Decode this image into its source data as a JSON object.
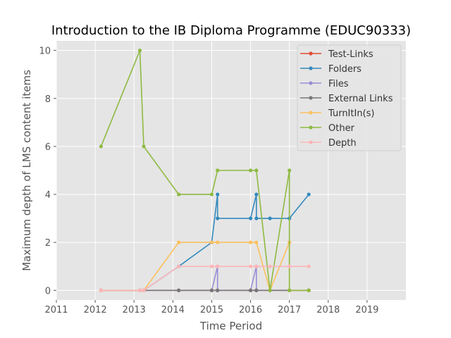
{
  "chart_data": {
    "type": "line",
    "title": "Introduction to the IB Diploma Programme (EDUC90333)",
    "xlabel": "Time Period",
    "ylabel": "Maximum depth of LMS content items",
    "xlim": [
      2011,
      2020
    ],
    "ylim": [
      -0.4,
      10.4
    ],
    "xticks": [
      2011,
      2012,
      2013,
      2014,
      2015,
      2016,
      2017,
      2018,
      2019
    ],
    "yticks": [
      0,
      2,
      4,
      6,
      8,
      10
    ],
    "grid": true,
    "legend_position": "top-right",
    "series": [
      {
        "name": "Test-Links",
        "color": "#E24A33",
        "points": [
          [
            2012.15,
            0
          ],
          [
            2013.15,
            0
          ],
          [
            2013.25,
            0
          ],
          [
            2014.15,
            0
          ],
          [
            2015.0,
            0
          ],
          [
            2015.15,
            0
          ],
          [
            2016.0,
            0
          ],
          [
            2016.15,
            0
          ],
          [
            2016.5,
            0
          ],
          [
            2017.0,
            0
          ],
          [
            2017.5,
            0
          ]
        ]
      },
      {
        "name": "Folders",
        "color": "#348ABD",
        "points": [
          [
            2012.15,
            0
          ],
          [
            2013.15,
            0
          ],
          [
            2013.25,
            0
          ],
          [
            2014.15,
            1
          ],
          [
            2015.0,
            2
          ],
          [
            2015.15,
            4
          ],
          [
            2015.15,
            3
          ],
          [
            2016.0,
            3
          ],
          [
            2016.15,
            4
          ],
          [
            2016.15,
            3
          ],
          [
            2016.5,
            3
          ],
          [
            2017.0,
            3
          ],
          [
            2017.5,
            4
          ]
        ]
      },
      {
        "name": "Files",
        "color": "#988ED5",
        "points": [
          [
            2012.15,
            0
          ],
          [
            2013.15,
            0
          ],
          [
            2013.25,
            0
          ],
          [
            2014.15,
            0
          ],
          [
            2015.0,
            0
          ],
          [
            2015.15,
            1
          ],
          [
            2015.15,
            0
          ],
          [
            2016.0,
            0
          ],
          [
            2016.15,
            1
          ],
          [
            2016.15,
            0
          ],
          [
            2016.5,
            0
          ],
          [
            2017.0,
            0
          ],
          [
            2017.5,
            0
          ]
        ]
      },
      {
        "name": "External Links",
        "color": "#777777",
        "points": [
          [
            2012.15,
            0
          ],
          [
            2013.15,
            0
          ],
          [
            2013.25,
            0
          ],
          [
            2014.15,
            0
          ],
          [
            2015.0,
            0
          ],
          [
            2015.15,
            0
          ],
          [
            2016.0,
            0
          ],
          [
            2016.15,
            0
          ],
          [
            2016.5,
            0
          ],
          [
            2017.0,
            0
          ],
          [
            2017.5,
            0
          ]
        ]
      },
      {
        "name": "TurnItIn(s)",
        "color": "#FBC15E",
        "points": [
          [
            2012.15,
            0
          ],
          [
            2013.15,
            0
          ],
          [
            2013.25,
            0
          ],
          [
            2014.15,
            2
          ],
          [
            2015.0,
            2
          ],
          [
            2015.15,
            2
          ],
          [
            2016.0,
            2
          ],
          [
            2016.15,
            2
          ],
          [
            2016.5,
            0
          ],
          [
            2017.0,
            2
          ],
          [
            2017.0,
            0
          ],
          [
            2017.5,
            0
          ]
        ]
      },
      {
        "name": "Other",
        "color": "#8EBA42",
        "points": [
          [
            2012.15,
            6
          ],
          [
            2013.15,
            10
          ],
          [
            2013.25,
            6
          ],
          [
            2014.15,
            4
          ],
          [
            2015.0,
            4
          ],
          [
            2015.15,
            5
          ],
          [
            2016.0,
            5
          ],
          [
            2016.15,
            5
          ],
          [
            2016.5,
            0
          ],
          [
            2017.0,
            5
          ],
          [
            2017.0,
            0
          ],
          [
            2017.5,
            0
          ]
        ]
      },
      {
        "name": "Depth",
        "color": "#FFB5B8",
        "points": [
          [
            2012.15,
            0
          ],
          [
            2013.15,
            0
          ],
          [
            2013.25,
            0
          ],
          [
            2014.15,
            1
          ],
          [
            2015.0,
            1
          ],
          [
            2015.15,
            1
          ],
          [
            2016.0,
            1
          ],
          [
            2016.15,
            1
          ],
          [
            2016.5,
            1
          ],
          [
            2017.0,
            1
          ],
          [
            2017.5,
            1
          ]
        ]
      }
    ]
  }
}
